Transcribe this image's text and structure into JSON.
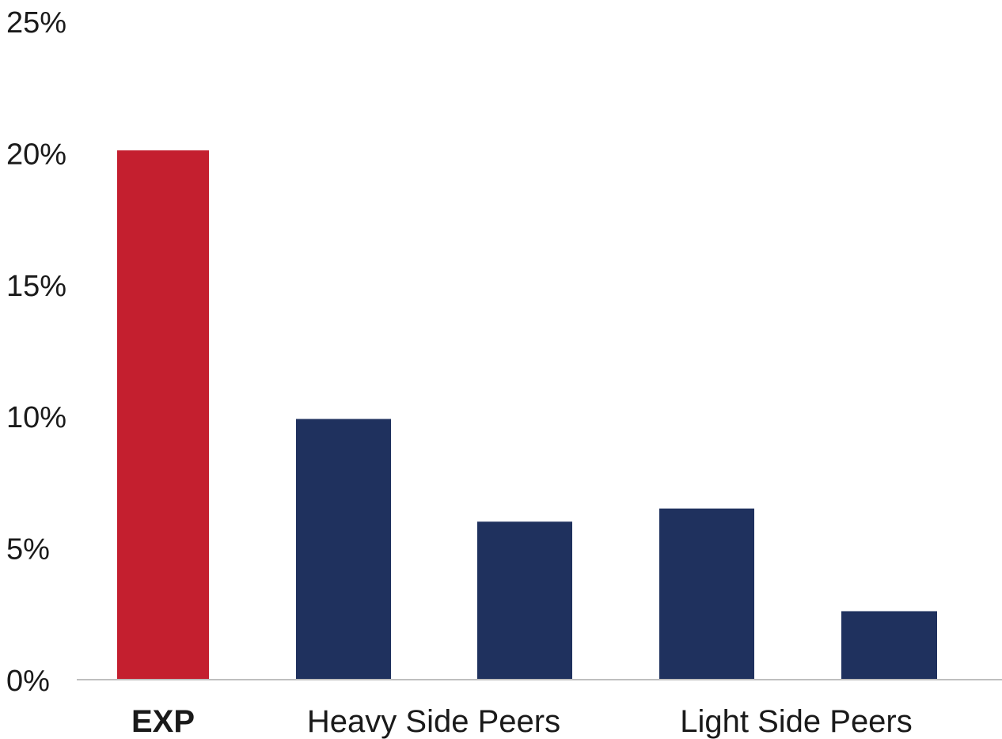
{
  "chart_data": {
    "type": "bar",
    "title": "",
    "xlabel": "",
    "ylabel": "",
    "ylim": [
      0,
      25
    ],
    "yticks": [
      {
        "value": 0,
        "label": "0%"
      },
      {
        "value": 5,
        "label": "5%"
      },
      {
        "value": 10,
        "label": "10%"
      },
      {
        "value": 15,
        "label": "15%"
      },
      {
        "value": 20,
        "label": "20%"
      },
      {
        "value": 25,
        "label": "25%"
      }
    ],
    "groups": [
      {
        "label": "EXP",
        "bold": true,
        "bar_count": 1
      },
      {
        "label": "Heavy Side Peers",
        "bold": false,
        "bar_count": 2
      },
      {
        "label": "Light Side Peers",
        "bold": false,
        "bar_count": 2
      }
    ],
    "bars": [
      {
        "group": "EXP",
        "value": 20.1,
        "color": "#c41f2f"
      },
      {
        "group": "Heavy Side Peers",
        "value": 9.9,
        "color": "#1f315e"
      },
      {
        "group": "Heavy Side Peers",
        "value": 6.0,
        "color": "#1f315e"
      },
      {
        "group": "Light Side Peers",
        "value": 6.5,
        "color": "#1f315e"
      },
      {
        "group": "Light Side Peers",
        "value": 2.6,
        "color": "#1f315e"
      }
    ],
    "grid": false,
    "legend": "none",
    "colors": {
      "highlight": "#c41f2f",
      "peers": "#1f315e",
      "axis": "#bfbfbf"
    }
  }
}
